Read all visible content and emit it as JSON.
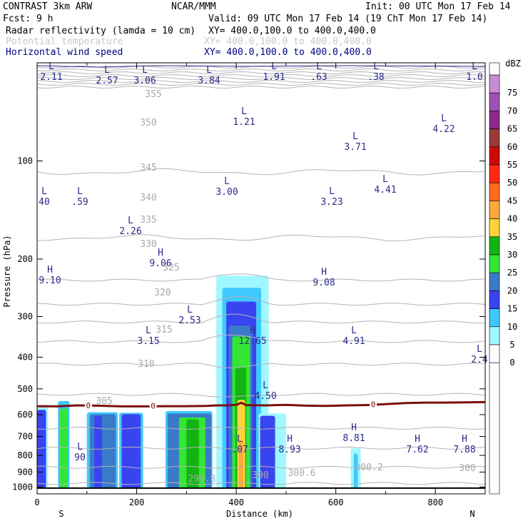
{
  "header": {
    "line1_left": "CONTRAST  3km ARW",
    "line1_mid": "NCAR/MMM",
    "line1_right": "Init: 00 UTC Mon 17 Feb 14",
    "line2_left": "Fcst:     9 h",
    "line2_right": "Valid: 09 UTC Mon 17 Feb 14 (19 ChT Mon 17 Feb 14)",
    "field1_name": "Radar reflectivity (lamda = 10 cm)",
    "field1_xy": "XY= 400.0,100.0 to 400.0,400.0",
    "field2_name": "Potential temperature",
    "field2_xy": "XY= 400.0,100.0 to 400.0,400.0",
    "field3_name": "Horizontal wind speed",
    "field3_xy": "XY= 400.0,100.0 to 400.0,400.0"
  },
  "colors": {
    "theta": "#b4b4b4",
    "wind": "#2a2a8a",
    "freezing_level": "#7a0f0f",
    "ground": "#000000"
  },
  "colorbar": {
    "unit": "dBZ",
    "levels": [
      0,
      5,
      10,
      15,
      20,
      25,
      30,
      35,
      40,
      45,
      50,
      55,
      60,
      65,
      70,
      75
    ],
    "labels": [
      "0",
      "5",
      "10",
      "15",
      "20",
      "25",
      "30",
      "35",
      "40",
      "45",
      "50",
      "55",
      "60",
      "65",
      "70",
      "75"
    ],
    "colors": [
      "#ffffff",
      "#9ff7ff",
      "#3ec8ff",
      "#3a43f0",
      "#3a7ac8",
      "#34e634",
      "#12b412",
      "#ffd23c",
      "#ffa83c",
      "#ff6a1e",
      "#ff2a14",
      "#cc0a0a",
      "#9a3838",
      "#8a2a8a",
      "#a050b4",
      "#c88cd2"
    ]
  },
  "chart_data": {
    "type": "heatmap",
    "title": "Radar reflectivity (lamda = 10 cm)",
    "xlabel": "Distance (km)",
    "ylabel": "Pressure (hPa)",
    "xlim": [
      0,
      900
    ],
    "ylim": [
      1050,
      50
    ],
    "x_ticks": [
      0,
      200,
      400,
      600,
      800
    ],
    "x_tick_labels": [
      "0",
      "200",
      "400",
      "600",
      "800"
    ],
    "y_ticks": [
      100,
      200,
      300,
      400,
      500,
      600,
      700,
      800,
      900,
      1000
    ],
    "y_tick_labels": [
      "100",
      "200",
      "300",
      "400",
      "500",
      "600",
      "700",
      "800",
      "900",
      "1000"
    ],
    "y_scale": "log",
    "endpoint_labels": {
      "left": "S",
      "right": "N"
    },
    "reflectivity_columns": [
      {
        "x0": 0,
        "x1": 22,
        "ptop": 570,
        "dbz": 5
      },
      {
        "x0": 0,
        "x1": 18,
        "ptop": 580,
        "dbz": 15
      },
      {
        "x0": 42,
        "x1": 65,
        "ptop": 545,
        "dbz": 10
      },
      {
        "x0": 46,
        "x1": 62,
        "ptop": 575,
        "dbz": 25
      },
      {
        "x0": 100,
        "x1": 162,
        "ptop": 590,
        "dbz": 10
      },
      {
        "x0": 106,
        "x1": 158,
        "ptop": 598,
        "dbz": 20
      },
      {
        "x0": 115,
        "x1": 130,
        "ptop": 605,
        "dbz": 15
      },
      {
        "x0": 165,
        "x1": 213,
        "ptop": 592,
        "dbz": 10
      },
      {
        "x0": 170,
        "x1": 208,
        "ptop": 598,
        "dbz": 15
      },
      {
        "x0": 258,
        "x1": 352,
        "ptop": 585,
        "dbz": 10
      },
      {
        "x0": 262,
        "x1": 350,
        "ptop": 595,
        "dbz": 20
      },
      {
        "x0": 285,
        "x1": 338,
        "ptop": 612,
        "dbz": 25
      },
      {
        "x0": 300,
        "x1": 325,
        "ptop": 620,
        "dbz": 30
      },
      {
        "x0": 360,
        "x1": 465,
        "ptop": 225,
        "dbz": 5
      },
      {
        "x0": 372,
        "x1": 450,
        "ptop": 245,
        "dbz": 10
      },
      {
        "x0": 380,
        "x1": 440,
        "ptop": 270,
        "dbz": 15
      },
      {
        "x0": 385,
        "x1": 432,
        "ptop": 320,
        "dbz": 20
      },
      {
        "x0": 392,
        "x1": 428,
        "ptop": 345,
        "dbz": 25
      },
      {
        "x0": 398,
        "x1": 420,
        "ptop": 430,
        "dbz": 30
      },
      {
        "x0": 402,
        "x1": 418,
        "ptop": 540,
        "dbz": 35
      },
      {
        "x0": 405,
        "x1": 414,
        "ptop": 720,
        "dbz": 40
      },
      {
        "x0": 445,
        "x1": 500,
        "ptop": 595,
        "dbz": 5
      },
      {
        "x0": 448,
        "x1": 478,
        "ptop": 605,
        "dbz": 15
      },
      {
        "x0": 630,
        "x1": 650,
        "ptop": 760,
        "dbz": 5
      },
      {
        "x0": 636,
        "x1": 644,
        "ptop": 790,
        "dbz": 10
      }
    ],
    "isentropes_K": [
      355,
      350,
      345,
      340,
      335,
      330,
      325,
      320,
      315,
      310,
      305,
      300
    ],
    "isentrope_labels": [
      "355",
      "350",
      "345",
      "340",
      "335",
      "330",
      "325",
      "320",
      "315",
      "310",
      "305",
      "300.6",
      "300.2",
      "300",
      "299.8",
      "300"
    ],
    "freezing_level_label": "0",
    "wind_speed_extrema": [
      {
        "type": "L",
        "value": "2.11"
      },
      {
        "type": "L",
        "value": "2.57"
      },
      {
        "type": "L",
        "value": "3.06"
      },
      {
        "type": "L",
        "value": "3.84"
      },
      {
        "type": "L",
        "value": "1.91"
      },
      {
        "type": "L",
        "value": ".63"
      },
      {
        "type": "L",
        "value": ".38"
      },
      {
        "type": "L",
        "value": "1.0"
      },
      {
        "type": "L",
        "value": "1.21"
      },
      {
        "type": "L",
        "value": "4.22"
      },
      {
        "type": "L",
        "value": "3.71"
      },
      {
        "type": "L",
        "value": "3.00"
      },
      {
        "type": "L",
        "value": "40"
      },
      {
        "type": "L",
        "value": ".59"
      },
      {
        "type": "L",
        "value": "3.23"
      },
      {
        "type": "L",
        "value": "4.41"
      },
      {
        "type": "L",
        "value": "2.26"
      },
      {
        "type": "H",
        "value": "9.06"
      },
      {
        "type": "H",
        "value": "9.10"
      },
      {
        "type": "H",
        "value": "9.08"
      },
      {
        "type": "L",
        "value": "2.53"
      },
      {
        "type": "L",
        "value": "3.15"
      },
      {
        "type": "H",
        "value": "12.65"
      },
      {
        "type": "L",
        "value": "4.91"
      },
      {
        "type": "L",
        "value": "2.4"
      },
      {
        "type": "L",
        "value": "4.50"
      },
      {
        "type": "L",
        "value": ".07"
      },
      {
        "type": "H",
        "value": "8.93"
      },
      {
        "type": "H",
        "value": "8.81"
      },
      {
        "type": "H",
        "value": "7.62"
      },
      {
        "type": "H",
        "value": "7.88"
      },
      {
        "type": "L",
        "value": "90"
      }
    ]
  }
}
